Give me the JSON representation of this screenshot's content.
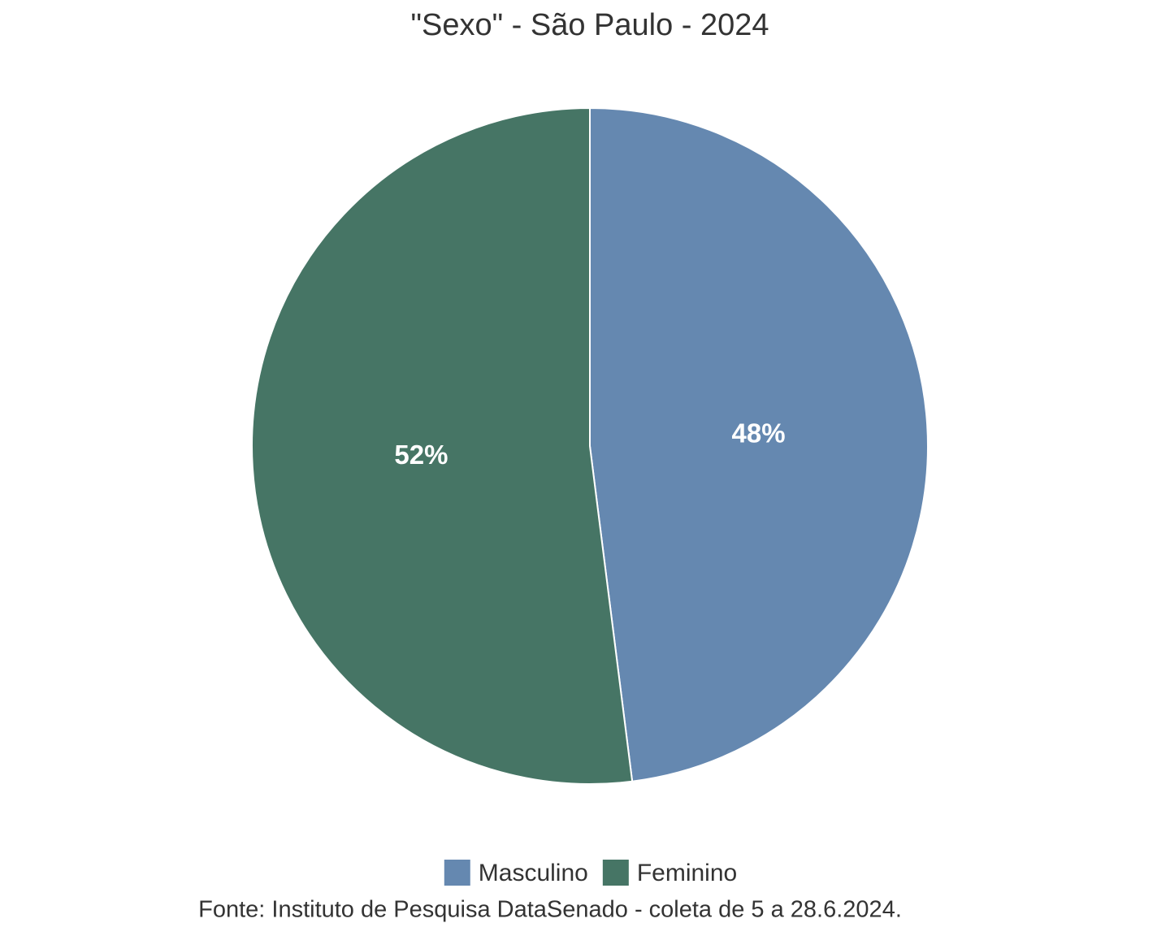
{
  "chart_data": {
    "type": "pie",
    "title": "\"Sexo\" - São Paulo - 2024",
    "categories": [
      "Masculino",
      "Feminino"
    ],
    "values": [
      48,
      52
    ],
    "value_labels": [
      "48%",
      "52%"
    ],
    "colors": [
      "#6588b0",
      "#467565"
    ],
    "caption": "Fonte: Instituto de Pesquisa DataSenado - coleta de 5 a 28.6.2024.",
    "legend": "bottom"
  }
}
